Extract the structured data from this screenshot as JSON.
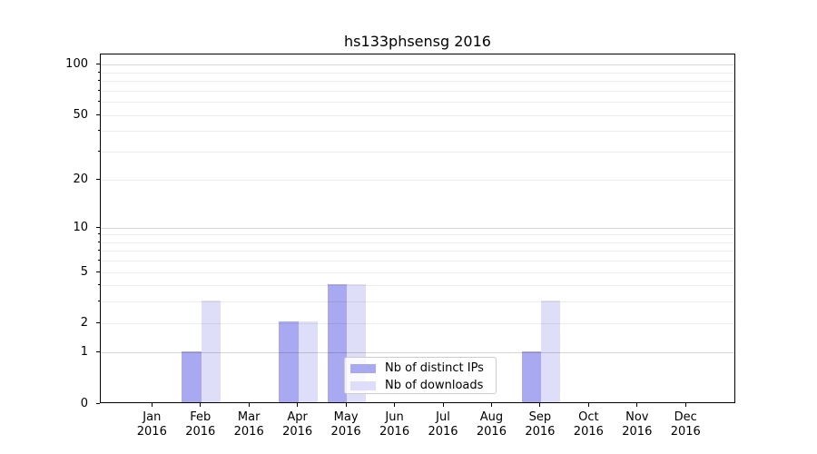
{
  "title": "hs133phsensg 2016",
  "chart_data": {
    "type": "bar",
    "title": "hs133phsensg 2016",
    "categories": [
      {
        "month": "Jan",
        "year": "2016"
      },
      {
        "month": "Feb",
        "year": "2016"
      },
      {
        "month": "Mar",
        "year": "2016"
      },
      {
        "month": "Apr",
        "year": "2016"
      },
      {
        "month": "May",
        "year": "2016"
      },
      {
        "month": "Jun",
        "year": "2016"
      },
      {
        "month": "Jul",
        "year": "2016"
      },
      {
        "month": "Aug",
        "year": "2016"
      },
      {
        "month": "Sep",
        "year": "2016"
      },
      {
        "month": "Oct",
        "year": "2016"
      },
      {
        "month": "Nov",
        "year": "2016"
      },
      {
        "month": "Dec",
        "year": "2016"
      }
    ],
    "series": [
      {
        "name": "Nb of distinct IPs",
        "key": "distinct-ips",
        "color": "#a9a9f1",
        "values": [
          0,
          1,
          0,
          2,
          4,
          0,
          0,
          0,
          1,
          0,
          0,
          0
        ]
      },
      {
        "name": "Nb of downloads",
        "key": "downloads",
        "color": "#dedef8",
        "values": [
          0,
          3,
          0,
          2,
          4,
          0,
          0,
          0,
          3,
          0,
          0,
          0
        ]
      }
    ],
    "y_axis": {
      "scale": "log1p",
      "min": 0,
      "max": 116,
      "ticks": [
        0,
        1,
        2,
        5,
        10,
        20,
        50,
        100
      ],
      "major_gridlines": [
        1,
        10,
        100
      ],
      "minor_gridlines": [
        2,
        3,
        4,
        5,
        6,
        7,
        8,
        9,
        20,
        30,
        40,
        50,
        60,
        70,
        80,
        90
      ]
    },
    "legend_position": "lower center",
    "grid": true
  },
  "colors": {
    "background": "#ffffff",
    "spine": "#000000",
    "major_grid": "rgba(0,0,0,0.16)",
    "minor_grid": "rgba(0,0,0,0.07)",
    "legend_border": "#cccccc",
    "legend_background": "rgba(255,255,255,0.8)"
  }
}
